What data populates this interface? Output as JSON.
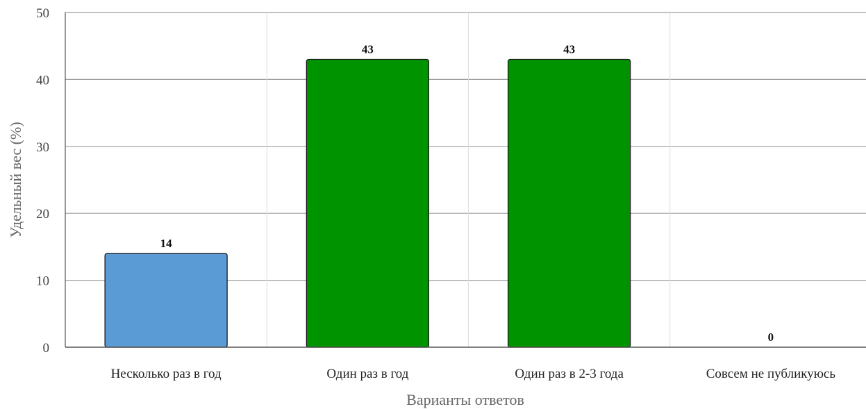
{
  "chart_data": {
    "type": "bar",
    "categories": [
      "Несколько раз в год",
      "Один раз в год",
      "Один раз в 2-3 года",
      "Совсем не публикуюсь"
    ],
    "values": [
      14,
      43,
      43,
      0
    ],
    "data_labels": [
      "14",
      "43",
      "43",
      "0"
    ],
    "bar_colors": [
      "#5b9bd5",
      "#009300",
      "#009300",
      "#009300"
    ],
    "title": "",
    "xlabel": "Варианты ответов",
    "ylabel": "Удельный вес (%)",
    "ylim": [
      0,
      50
    ],
    "yticks": [
      0,
      10,
      20,
      30,
      40,
      50
    ],
    "grid": true,
    "legend": "none"
  },
  "colors": {
    "gridline": "#9e9e9e",
    "category_separator": "#dddddd",
    "axis_line": "#555555",
    "bar_outline": "#1a1a1a"
  }
}
